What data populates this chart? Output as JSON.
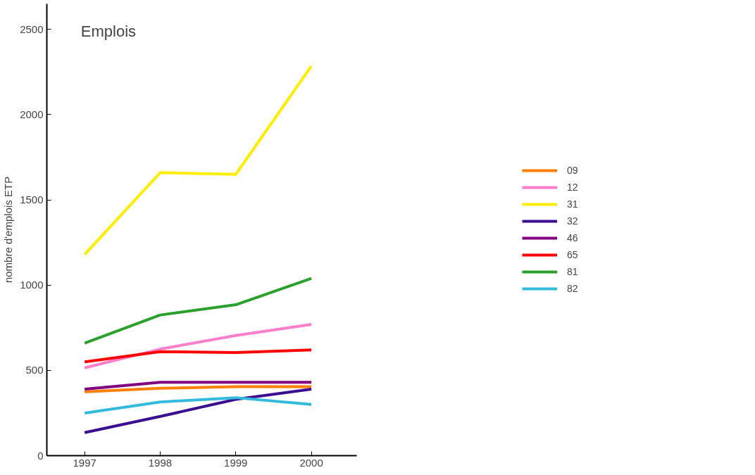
{
  "chart_data": {
    "type": "line",
    "title": "Emplois",
    "ylabel": "nombre d'emplois ETP",
    "x": [
      1997,
      1998,
      1999,
      2000
    ],
    "xlim": [
      1996.5,
      2000.6
    ],
    "xticks": [
      1997,
      1998,
      1999,
      2000
    ],
    "ylim": [
      0,
      2650
    ],
    "yticks": [
      0,
      500,
      1000,
      1500,
      2000,
      2500
    ],
    "grid": false,
    "legend": "right",
    "marker": "none",
    "line_style": "solid",
    "series": [
      {
        "name": "09",
        "color": "#ff7f00",
        "values": [
          375,
          395,
          405,
          405
        ]
      },
      {
        "name": "12",
        "color": "#ff7fcc",
        "values": [
          515,
          625,
          705,
          770
        ]
      },
      {
        "name": "31",
        "color": "#ffee00",
        "values": [
          1180,
          1660,
          1650,
          2285
        ]
      },
      {
        "name": "32",
        "color": "#3b0f8f",
        "values": [
          135,
          230,
          330,
          390
        ]
      },
      {
        "name": "46",
        "color": "#800080",
        "values": [
          390,
          430,
          430,
          430
        ]
      },
      {
        "name": "65",
        "color": "#ff0000",
        "values": [
          550,
          610,
          605,
          620
        ]
      },
      {
        "name": "81",
        "color": "#2ca02c",
        "values": [
          660,
          825,
          885,
          1040
        ]
      },
      {
        "name": "82",
        "color": "#33bbdd",
        "values": [
          250,
          315,
          340,
          300
        ]
      }
    ]
  }
}
